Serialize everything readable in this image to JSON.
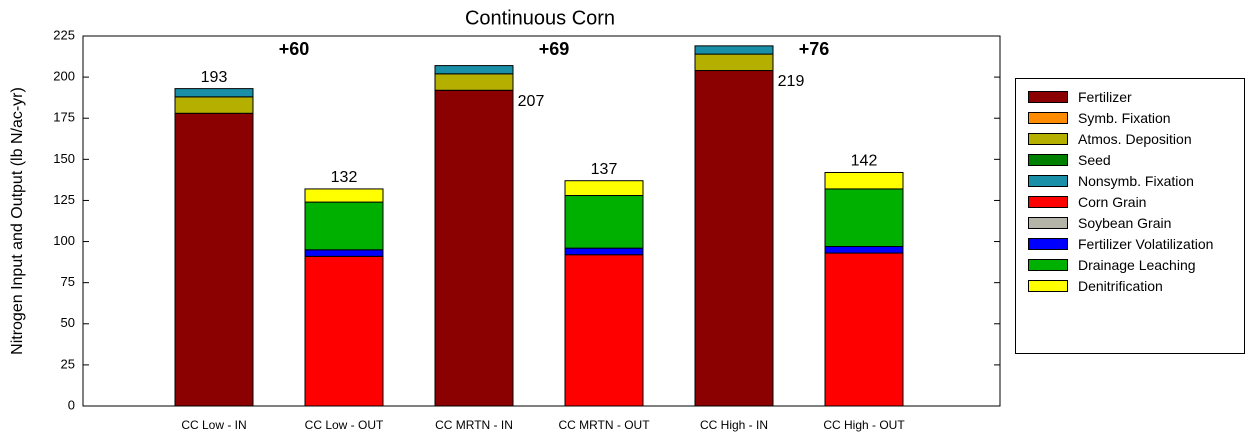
{
  "chart_data": {
    "type": "stacked_bar",
    "title": "Continuous Corn",
    "y_label": "Nitrogen Input and Output (lb N/ac-yr)",
    "categories": [
      "CC Low - IN",
      "CC Low - OUT",
      "CC MRTN - IN",
      "CC MRTN - OUT",
      "CC High - IN",
      "CC High - OUT"
    ],
    "series": [
      {
        "name": "Fertilizer",
        "color": "#8b0000",
        "values": [
          178,
          0,
          192,
          0,
          204,
          0
        ]
      },
      {
        "name": "Symb. Fixation",
        "color": "#ff8c00",
        "values": [
          0,
          0,
          0,
          0,
          0,
          0
        ]
      },
      {
        "name": "Atmos. Deposition",
        "color": "#b5b000",
        "values": [
          10,
          0,
          10,
          0,
          10,
          0
        ]
      },
      {
        "name": "Seed",
        "color": "#008000",
        "values": [
          0,
          0,
          0,
          0,
          0,
          0
        ]
      },
      {
        "name": "Nonsymb. Fixation",
        "color": "#1a8fa8",
        "values": [
          5,
          0,
          5,
          0,
          5,
          0
        ]
      },
      {
        "name": "Corn Grain",
        "color": "#ff0000",
        "values": [
          0,
          91,
          0,
          92,
          0,
          93
        ]
      },
      {
        "name": "Soybean Grain",
        "color": "#b4b4a8",
        "values": [
          0,
          0,
          0,
          0,
          0,
          0
        ]
      },
      {
        "name": "Fertilizer Volatilization",
        "color": "#0000ff",
        "values": [
          0,
          4,
          0,
          4,
          0,
          4
        ]
      },
      {
        "name": "Drainage Leaching",
        "color": "#00b000",
        "values": [
          0,
          29,
          0,
          32,
          0,
          35
        ]
      },
      {
        "name": "Denitrification",
        "color": "#ffff00",
        "values": [
          0,
          8,
          0,
          9,
          0,
          10
        ]
      }
    ],
    "total_labels": [
      193,
      132,
      207,
      137,
      219,
      142
    ],
    "annotations": [
      "+60",
      "+69",
      "+76"
    ],
    "ylim": [
      0,
      225
    ],
    "yticks": [
      0,
      25,
      50,
      75,
      100,
      125,
      150,
      175,
      200,
      225
    ],
    "legend_position": "right"
  }
}
